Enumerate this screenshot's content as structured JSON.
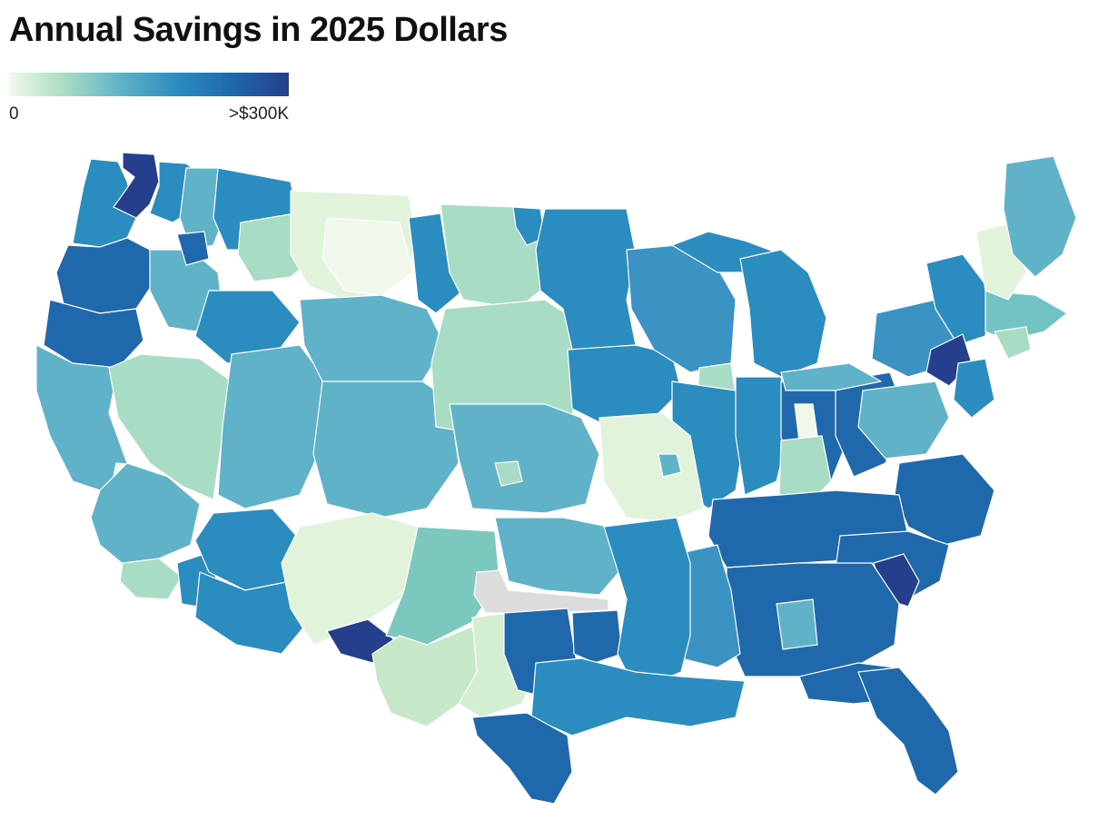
{
  "title": "Annual Savings in 2025 Dollars",
  "legend": {
    "min_label": "0",
    "max_label": ">$300K",
    "colors": [
      "#f0f8ec",
      "#a8dcc4",
      "#5fb2c8",
      "#2b8cbf",
      "#1f68ab",
      "#253f8c"
    ]
  },
  "map": {
    "region": "contiguous-united-states",
    "no_data_color": "#dcdcdc"
  }
}
